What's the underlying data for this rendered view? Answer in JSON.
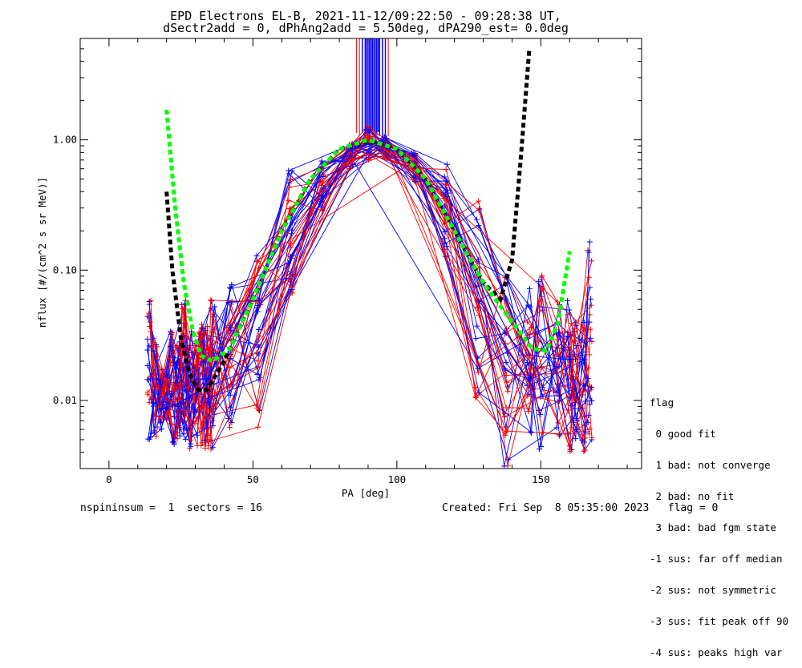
{
  "chart_data": {
    "type": "line",
    "title": "EPD Electrons EL-B, 2021-11-12/09:22:50 - 09:28:38 UT,",
    "subtitle": "dSectr2add = 0, dPhAng2add = 5.50deg, dPA290_est=    0.0deg",
    "xlabel": "PA [deg]",
    "ylabel": "nflux [#/(cm^2 s sr MeV)]",
    "xlim": [
      -10,
      185
    ],
    "ylim": [
      0.003,
      6.0
    ],
    "yscale": "log",
    "xticks": [
      0,
      50,
      100,
      150
    ],
    "xtick_labels": [
      "0",
      "50",
      "100",
      "150"
    ],
    "yticks": [
      0.01,
      0.1,
      1.0
    ],
    "ytick_labels": [
      "0.01",
      "0.10",
      "1.00"
    ],
    "grid": false,
    "series": [
      {
        "color": "#ff0000",
        "style": "solid",
        "x": [
          24,
          32,
          42,
          52,
          63,
          74,
          84,
          92,
          98,
          106,
          117,
          128,
          138,
          148
        ],
        "y": [
          0.012,
          0.02,
          0.04,
          0.1,
          0.28,
          0.62,
          0.9,
          0.98,
          0.9,
          0.72,
          0.35,
          0.14,
          0.045,
          0.02
        ]
      },
      {
        "color": "#0000ff",
        "style": "solid",
        "x": [
          22,
          32,
          42,
          52,
          63,
          74,
          84,
          92,
          98,
          106,
          117,
          128,
          138,
          148
        ],
        "y": [
          0.009,
          0.012,
          0.03,
          0.08,
          0.22,
          0.55,
          0.85,
          0.95,
          0.88,
          0.62,
          0.27,
          0.09,
          0.025,
          0.012
        ]
      },
      {
        "color": "#000000",
        "style": "dashed-thick",
        "x": [
          20,
          22,
          25,
          28,
          31,
          34,
          40,
          50,
          60,
          70,
          80,
          90,
          100,
          110,
          120,
          130,
          136,
          140,
          143,
          146
        ],
        "y": [
          0.4,
          0.1,
          0.03,
          0.016,
          0.012,
          0.012,
          0.02,
          0.06,
          0.2,
          0.5,
          0.85,
          0.98,
          0.85,
          0.5,
          0.2,
          0.08,
          0.06,
          0.12,
          0.7,
          5.0
        ]
      },
      {
        "color": "#00ff00",
        "style": "dashed-thick",
        "x": [
          20,
          23,
          26,
          29,
          32,
          36,
          42,
          50,
          60,
          70,
          80,
          90,
          100,
          110,
          120,
          130,
          140,
          147,
          152,
          156,
          160
        ],
        "y": [
          1.7,
          0.3,
          0.08,
          0.035,
          0.022,
          0.02,
          0.025,
          0.06,
          0.2,
          0.5,
          0.85,
          1.0,
          0.85,
          0.5,
          0.2,
          0.08,
          0.04,
          0.025,
          0.024,
          0.04,
          0.14
        ]
      }
    ],
    "scatter_spread": {
      "x_samples": [
        14,
        16,
        18,
        20,
        22,
        24,
        26,
        28,
        30,
        32,
        34,
        36,
        42,
        52,
        63,
        74,
        84,
        90,
        96,
        106,
        117,
        128,
        138,
        146,
        150,
        156,
        160,
        162,
        165,
        167
      ],
      "y_low_high": [
        [
          0.005,
          0.065
        ],
        [
          0.005,
          0.03
        ],
        [
          0.006,
          0.018
        ],
        [
          0.007,
          0.016
        ],
        [
          0.004,
          0.035
        ],
        [
          0.005,
          0.03
        ],
        [
          0.005,
          0.06
        ],
        [
          0.004,
          0.04
        ],
        [
          0.004,
          0.03
        ],
        [
          0.0035,
          0.04
        ],
        [
          0.004,
          0.045
        ],
        [
          0.004,
          0.06
        ],
        [
          0.006,
          0.09
        ],
        [
          0.006,
          0.14
        ],
        [
          0.06,
          0.58
        ],
        [
          0.28,
          0.72
        ],
        [
          0.6,
          0.95
        ],
        [
          0.7,
          1.35
        ],
        [
          0.7,
          1.1
        ],
        [
          0.45,
          0.8
        ],
        [
          0.12,
          0.65
        ],
        [
          0.01,
          0.38
        ],
        [
          0.003,
          0.12
        ],
        [
          0.005,
          0.08
        ],
        [
          0.004,
          0.1
        ],
        [
          0.005,
          0.06
        ],
        [
          0.004,
          0.06
        ],
        [
          0.005,
          0.04
        ],
        [
          0.004,
          0.04
        ],
        [
          0.004,
          0.19
        ]
      ]
    },
    "spikes": {
      "red_x": [
        86,
        87,
        88,
        89,
        90,
        91,
        92,
        93,
        94,
        95,
        96,
        97
      ],
      "blue_x": [
        88,
        89,
        89.5,
        90,
        90.5,
        91,
        91.5,
        92,
        92.5,
        93,
        93.5,
        94,
        95,
        96
      ],
      "top_value": 6.0,
      "bottom_values_range": [
        1.0,
        1.2
      ]
    }
  },
  "legend": {
    "title": "flag",
    "items": [
      " 0 good fit",
      " 1 bad: not converge",
      " 2 bad: no fit",
      " 3 bad: bad fgm state",
      "-1 sus: far off median",
      "-2 sus: not symmetric",
      "-3 sus: fit peak off 90",
      "-4 sus: peaks high var"
    ]
  },
  "footer": {
    "left": "nspininsum =  1  sectors = 16",
    "right": "Created: Fri Sep  8 05:35:00 2023   flag = 0"
  }
}
